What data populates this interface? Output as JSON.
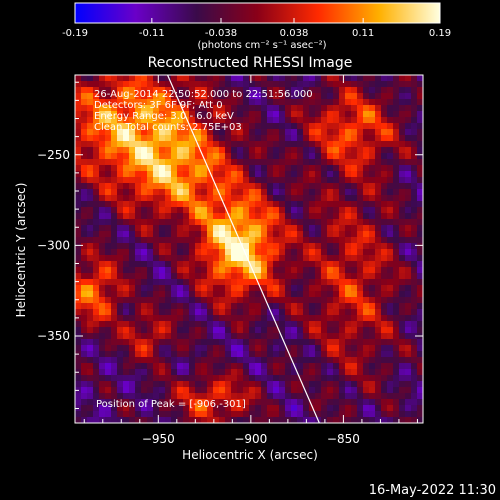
{
  "chart_data": {
    "type": "heatmap",
    "title": "Reconstructed RHESSI Image",
    "colorbar": {
      "ticks": [
        "-0.19",
        "-0.11",
        "-0.038",
        "0.038",
        "0.11",
        "0.19"
      ],
      "range": [
        -0.19,
        0.19
      ],
      "units_line": "(photons cm⁻² s⁻¹ asec⁻²)",
      "colormap": [
        "#0000ff",
        "#6a00c8",
        "#3a0a4a",
        "#8a0018",
        "#ff2a00",
        "#ffb000",
        "#ffffe0"
      ]
    },
    "xlabel": "Heliocentric X (arcsec)",
    "ylabel": "Heliocentric Y (arcsec)",
    "x_ticks": [
      -950,
      -900,
      -850
    ],
    "y_ticks": [
      -250,
      -300,
      -350
    ],
    "xlim": [
      -995,
      -807
    ],
    "ylim": [
      -398,
      -206
    ],
    "info": [
      "26-Aug-2014 22:50:52.000 to 22:51:56.000",
      "Detectors: 3F 6F 9F; Att 0",
      "Energy Range: 3.0 - 6.0 keV",
      "Clean    Total counts: 2.75E+03"
    ],
    "peak_label": "Position of Peak = [-906,-301]",
    "peak": [
      -906,
      -301
    ],
    "limb": [
      [
        -945,
        -206
      ],
      [
        -863,
        -398
      ]
    ],
    "sources": [
      {
        "x": -906,
        "y": -301,
        "sx": 16,
        "sy": 20,
        "a": 1.0
      },
      {
        "x": -965,
        "y": -232,
        "sx": 30,
        "sy": 22,
        "a": 0.75
      },
      {
        "x": -940,
        "y": -262,
        "sx": 22,
        "sy": 18,
        "a": 0.6
      },
      {
        "x": -985,
        "y": -325,
        "sx": 12,
        "sy": 14,
        "a": 0.65
      },
      {
        "x": -920,
        "y": -385,
        "sx": 16,
        "sy": 10,
        "a": 0.55
      },
      {
        "x": -845,
        "y": -235,
        "sx": 18,
        "sy": 16,
        "a": 0.55
      },
      {
        "x": -845,
        "y": -320,
        "sx": 18,
        "sy": 40,
        "a": 0.45
      },
      {
        "x": -955,
        "y": -350,
        "sx": 10,
        "sy": 10,
        "a": 0.45
      }
    ],
    "footer_date": "16-May-2022 11:30"
  }
}
